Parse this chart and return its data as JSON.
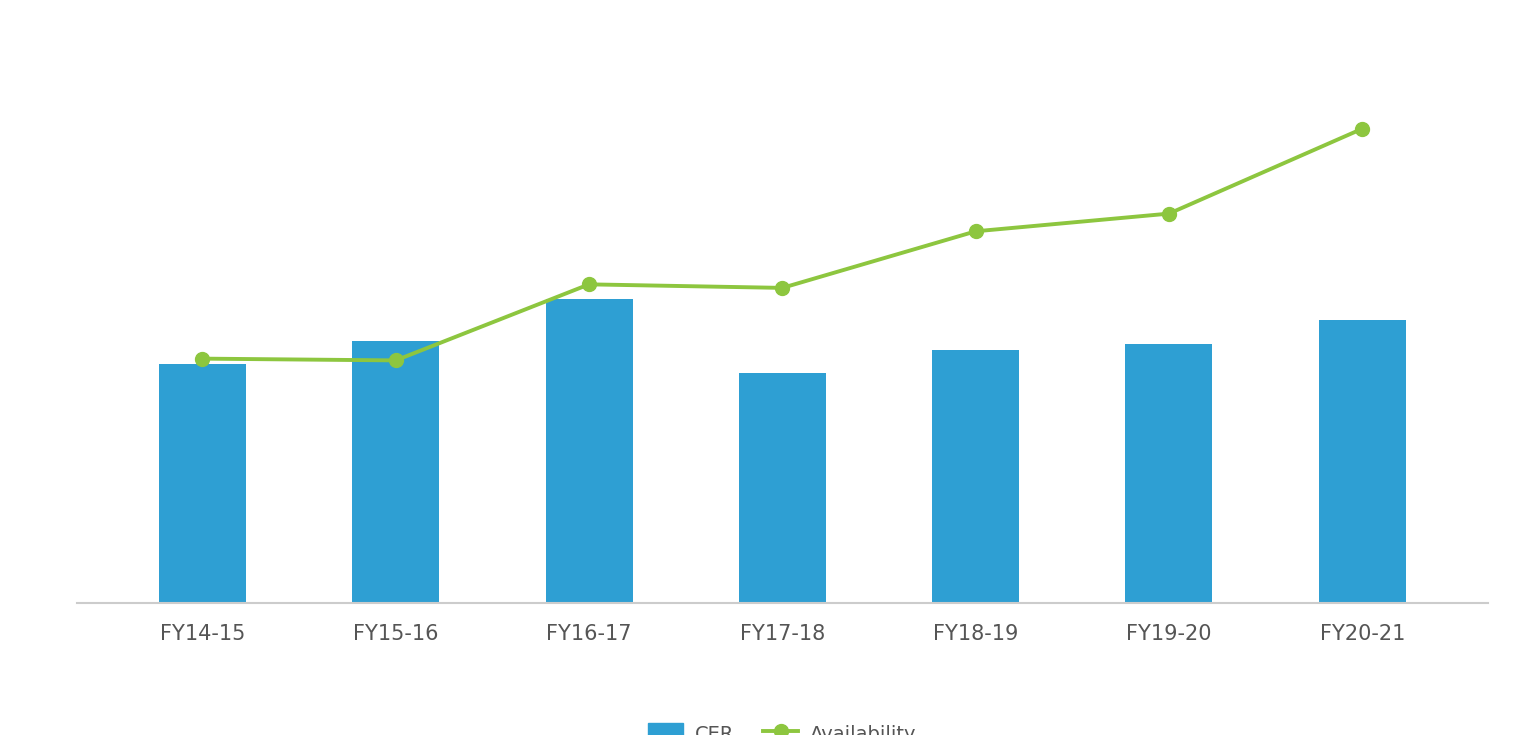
{
  "categories": [
    "FY14-15",
    "FY15-16",
    "FY16-17",
    "FY17-18",
    "FY18-19",
    "FY19-20",
    "FY20-21"
  ],
  "cer_values": [
    13.5,
    14.8,
    17.2,
    13.0,
    14.3,
    14.6,
    16.0
  ],
  "availability_values": [
    13.8,
    13.7,
    18.0,
    17.8,
    21.0,
    22.0,
    26.8
  ],
  "bar_color": "#2E9FD3",
  "line_color": "#8DC63F",
  "background_color": "#ffffff",
  "ylim": [
    0,
    32
  ],
  "bar_width": 0.45,
  "legend_cer_label": "CER",
  "legend_avail_label": "Availability",
  "tick_fontsize": 15,
  "legend_fontsize": 14,
  "spine_color": "#cccccc"
}
